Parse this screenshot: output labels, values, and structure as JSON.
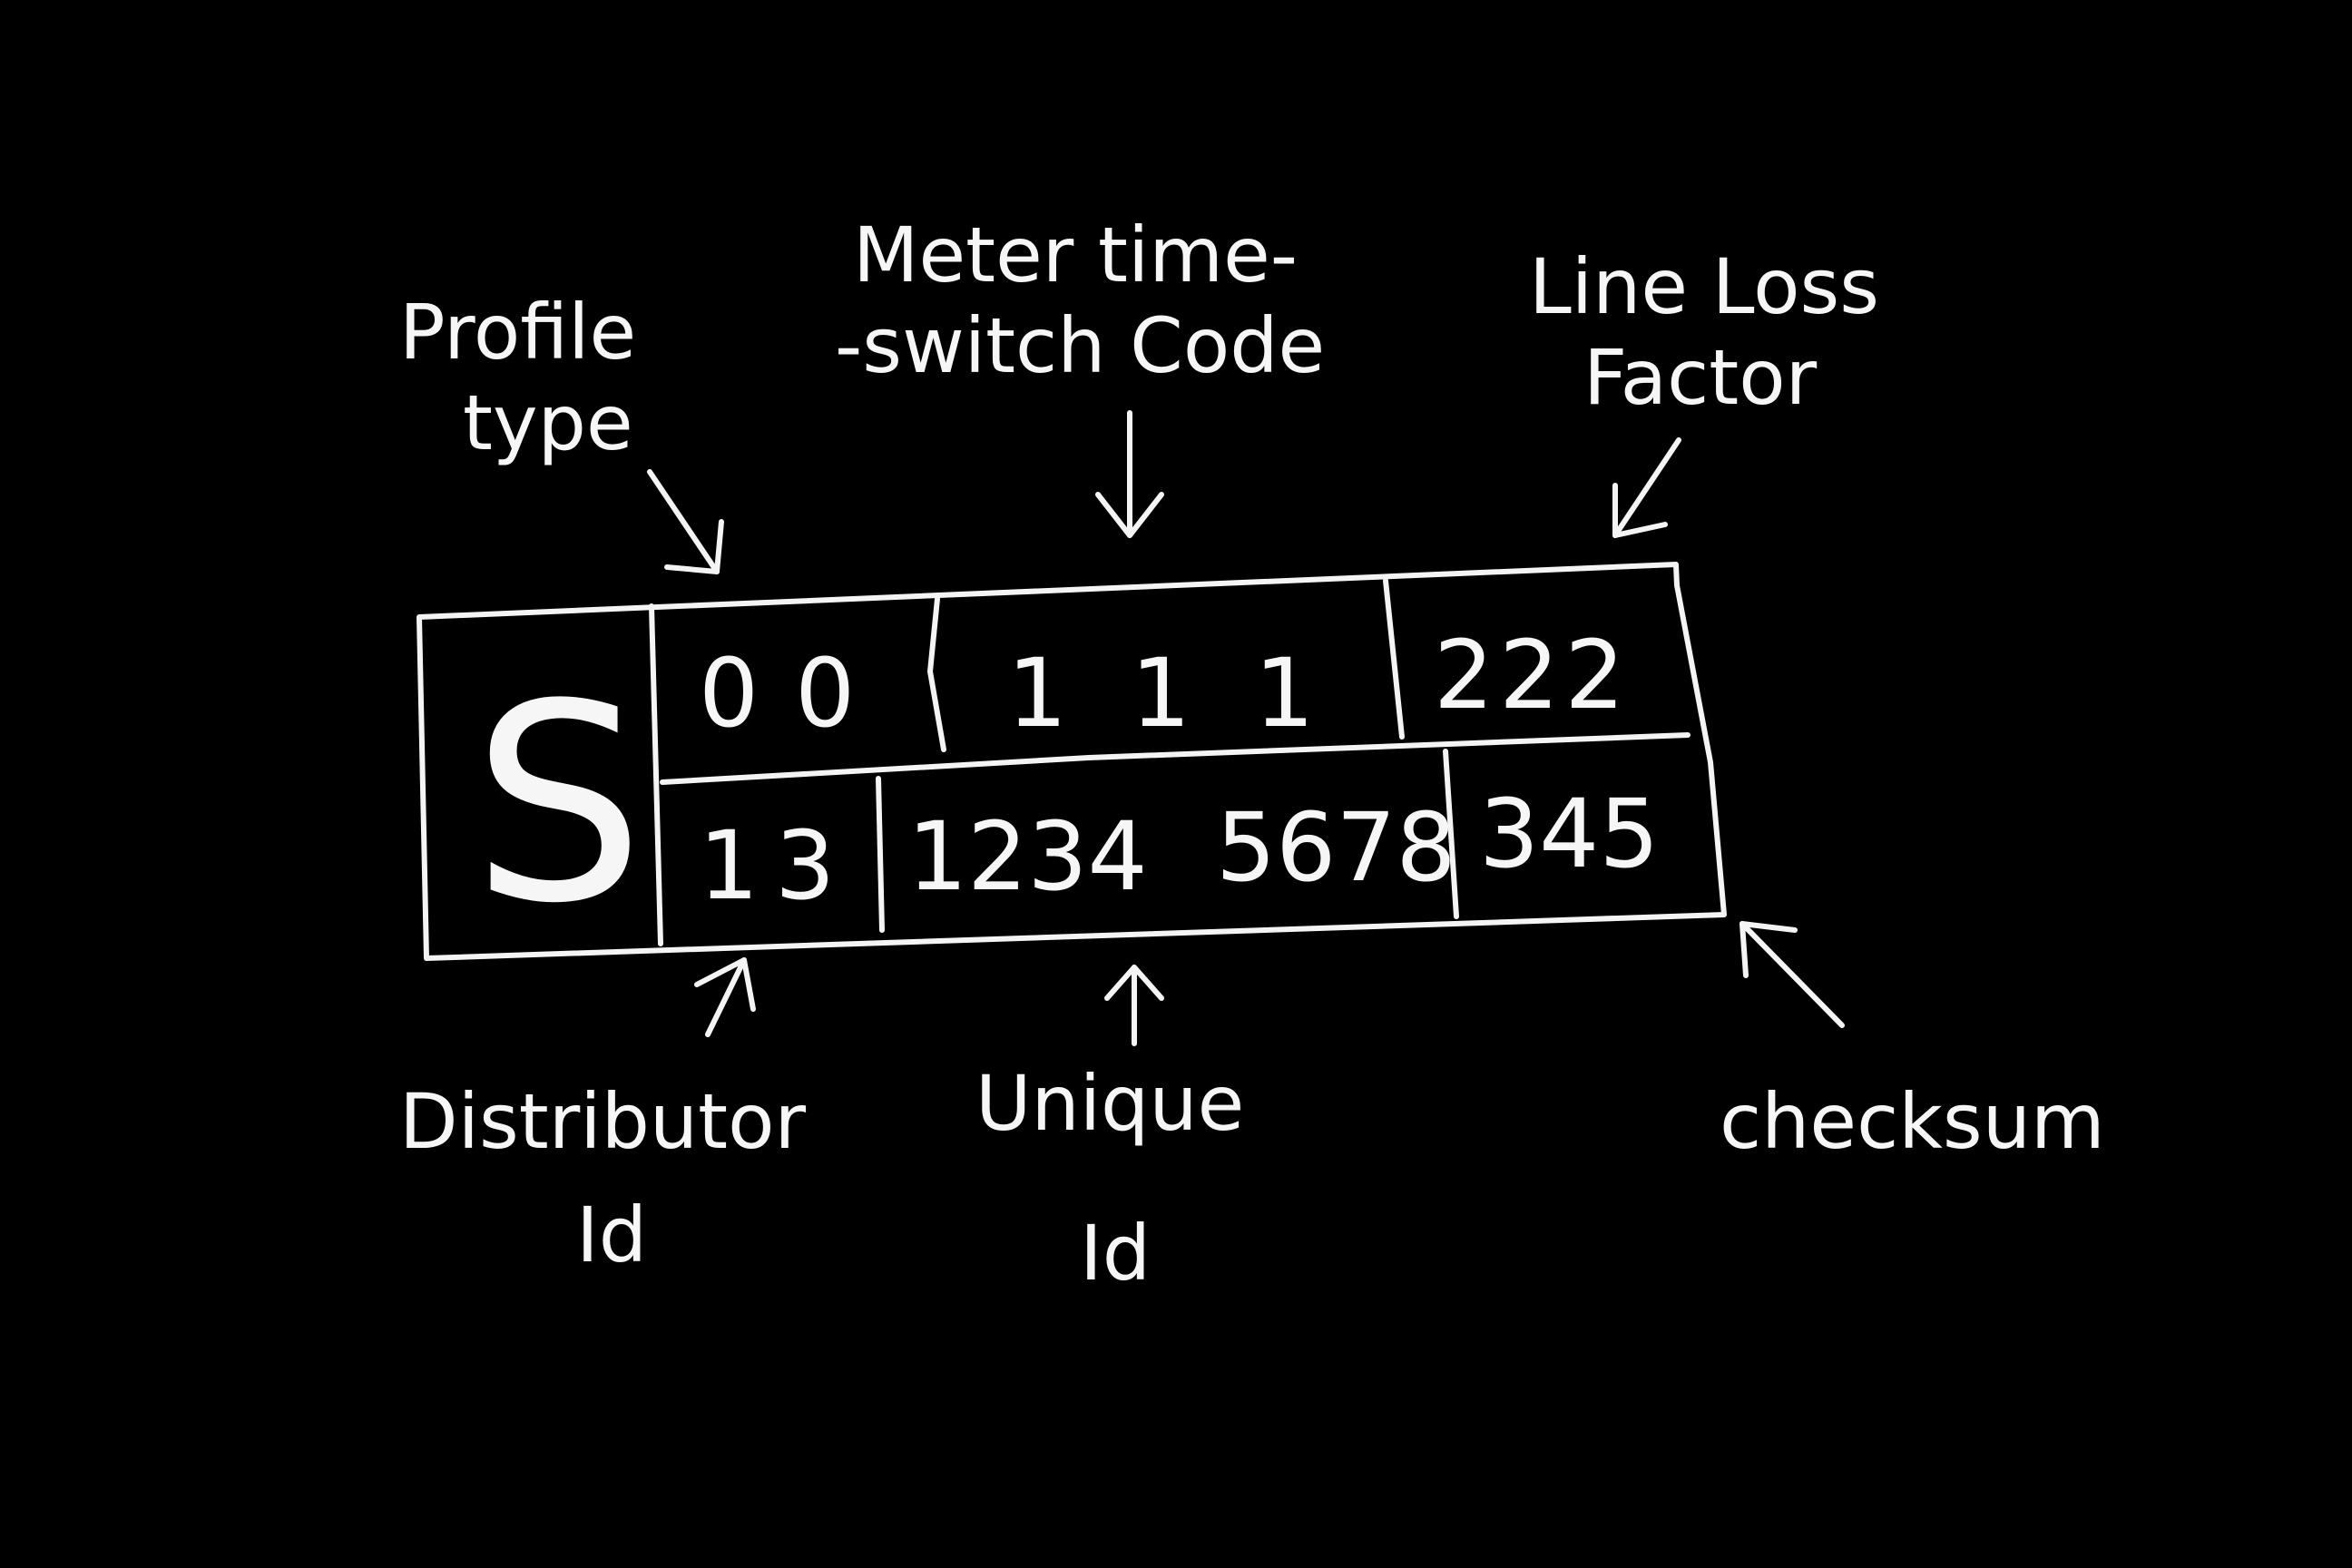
{
  "diagram": {
    "background_color": "#000000",
    "chalk_color": "#f4f4f4",
    "header_letter": "S",
    "top_row": {
      "profile_type": "00",
      "meter_time_switch_code": "111",
      "line_loss_factor": "222"
    },
    "bottom_row": {
      "distributor_id": "13",
      "unique_id_part1": "1234",
      "unique_id_part2": "5678",
      "checksum": "345"
    },
    "labels": {
      "profile_type_line1": "Profile",
      "profile_type_line2": "type",
      "meter_code_line1": "Meter time-",
      "meter_code_line2": "-switch Code",
      "line_loss_line1": "Line Loss",
      "line_loss_line2": "Factor",
      "distributor_line1": "Distributor",
      "distributor_line2": "Id",
      "unique_line1": "Unique",
      "unique_line2": "Id",
      "checksum": "checksum"
    }
  }
}
